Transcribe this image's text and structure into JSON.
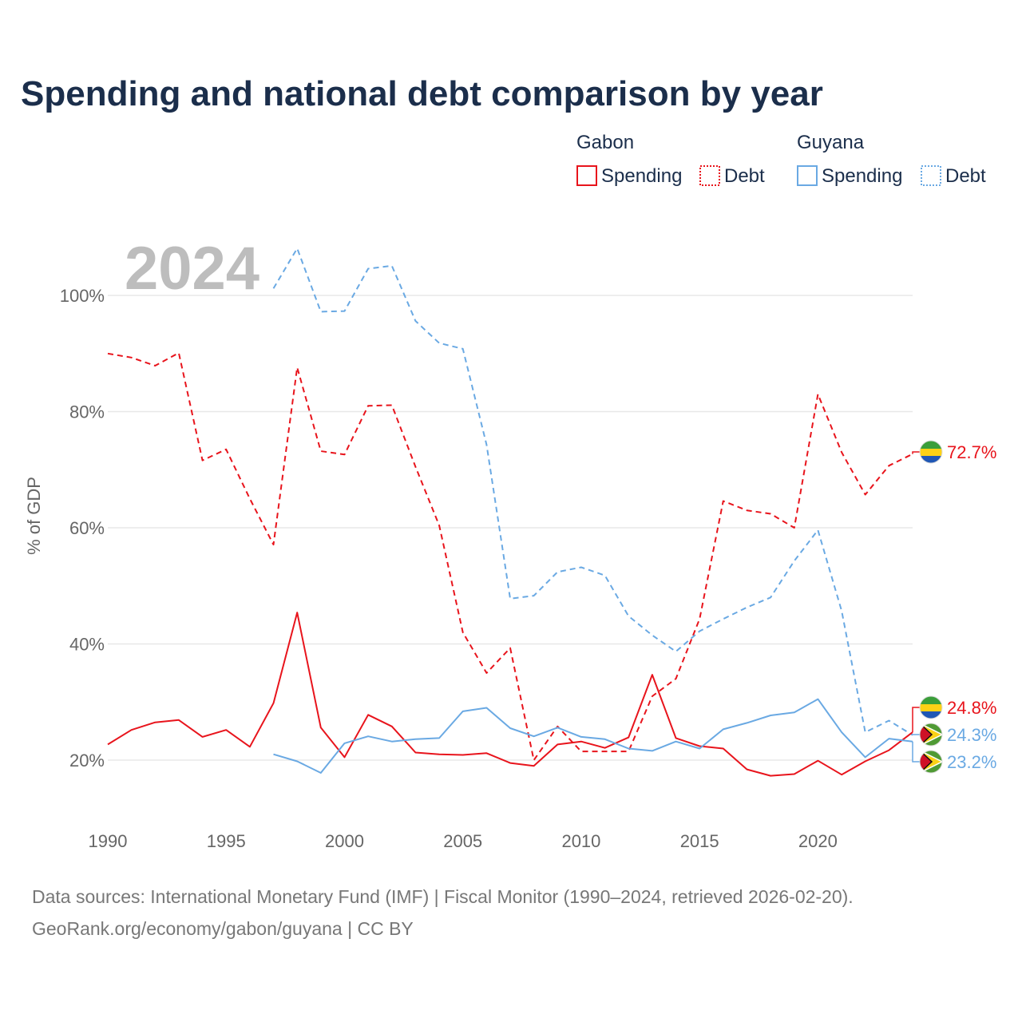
{
  "chart_data": {
    "type": "line",
    "title": "Spending and national debt comparison by year",
    "year_label": "2024",
    "ylabel": "% of GDP",
    "xlabel": "",
    "xlim": [
      1990,
      2024
    ],
    "ylim": [
      10,
      110
    ],
    "y_ticks": [
      20,
      40,
      60,
      80,
      100
    ],
    "y_tick_labels": [
      "20%",
      "40%",
      "60%",
      "80%",
      "100%"
    ],
    "x_ticks": [
      1990,
      1995,
      2000,
      2005,
      2010,
      2015,
      2020
    ],
    "x_tick_labels": [
      "1990",
      "1995",
      "2000",
      "2005",
      "2010",
      "2015",
      "2020"
    ],
    "grid": true,
    "legend": {
      "placement": "top-right",
      "groups": [
        {
          "name": "Gabon",
          "color": "#e8141c",
          "items": [
            "Spending",
            "Debt"
          ]
        },
        {
          "name": "Guyana",
          "color": "#6aa9e3",
          "items": [
            "Spending",
            "Debt"
          ]
        }
      ]
    },
    "series": [
      {
        "name": "Gabon Debt",
        "country": "Gabon",
        "metric": "Debt",
        "color": "#e8141c",
        "style": "dashed",
        "x": [
          1990,
          1991,
          1992,
          1993,
          1994,
          1995,
          1996,
          1997,
          1998,
          1999,
          2000,
          2001,
          2002,
          2003,
          2004,
          2005,
          2006,
          2007,
          2008,
          2009,
          2010,
          2011,
          2012,
          2013,
          2014,
          2015,
          2016,
          2017,
          2018,
          2019,
          2020,
          2021,
          2022,
          2023,
          2024
        ],
        "values": [
          90.0,
          89.3,
          87.9,
          90.1,
          71.6,
          73.5,
          65.0,
          57.1,
          87.6,
          73.2,
          72.6,
          81.0,
          81.1,
          70.5,
          60.4,
          42.0,
          35.0,
          39.3,
          20.0,
          25.8,
          21.5,
          21.5,
          21.5,
          31.0,
          34.0,
          44.3,
          64.6,
          63.0,
          62.4,
          60.0,
          83.0,
          73.0,
          65.7,
          70.7,
          72.7
        ],
        "end_label": "72.7%"
      },
      {
        "name": "Guyana Debt",
        "country": "Guyana",
        "metric": "Debt",
        "color": "#6aa9e3",
        "style": "dashed",
        "x": [
          1997,
          1998,
          1999,
          2000,
          2001,
          2002,
          2003,
          2004,
          2005,
          2006,
          2007,
          2008,
          2009,
          2010,
          2011,
          2012,
          2013,
          2014,
          2015,
          2016,
          2017,
          2018,
          2019,
          2020,
          2021,
          2022,
          2023,
          2024
        ],
        "values": [
          101.2,
          108.1,
          97.2,
          97.3,
          104.6,
          105.1,
          95.6,
          91.8,
          90.8,
          74.3,
          47.8,
          48.3,
          52.4,
          53.2,
          51.8,
          44.8,
          41.5,
          38.7,
          42.2,
          44.3,
          46.3,
          48.0,
          54.3,
          59.6,
          45.7,
          24.8,
          26.8,
          24.3
        ],
        "end_label": "24.3%"
      },
      {
        "name": "Gabon Spending",
        "country": "Gabon",
        "metric": "Spending",
        "color": "#e8141c",
        "style": "solid",
        "x": [
          1990,
          1991,
          1992,
          1993,
          1994,
          1995,
          1996,
          1997,
          1998,
          1999,
          2000,
          2001,
          2002,
          2003,
          2004,
          2005,
          2006,
          2007,
          2008,
          2009,
          2010,
          2011,
          2012,
          2013,
          2014,
          2015,
          2016,
          2017,
          2018,
          2019,
          2020,
          2021,
          2022,
          2023,
          2024
        ],
        "values": [
          22.7,
          25.2,
          26.5,
          26.9,
          24.0,
          25.2,
          22.3,
          29.8,
          45.4,
          25.6,
          20.5,
          27.8,
          25.8,
          21.3,
          21.0,
          20.9,
          21.2,
          19.5,
          19.0,
          22.7,
          23.2,
          22.1,
          23.9,
          34.7,
          23.8,
          22.4,
          22.0,
          18.4,
          17.3,
          17.6,
          19.9,
          17.5,
          19.8,
          21.7,
          24.8
        ],
        "end_label": "24.8%"
      },
      {
        "name": "Guyana Spending",
        "country": "Guyana",
        "metric": "Spending",
        "color": "#6aa9e3",
        "style": "solid",
        "x": [
          1997,
          1998,
          1999,
          2000,
          2001,
          2002,
          2003,
          2004,
          2005,
          2006,
          2007,
          2008,
          2009,
          2010,
          2011,
          2012,
          2013,
          2014,
          2015,
          2016,
          2017,
          2018,
          2019,
          2020,
          2021,
          2022,
          2023,
          2024
        ],
        "values": [
          21.0,
          19.8,
          17.8,
          22.9,
          24.1,
          23.2,
          23.6,
          23.8,
          28.4,
          29.0,
          25.5,
          24.1,
          25.6,
          24.0,
          23.6,
          22.0,
          21.6,
          23.2,
          22.0,
          25.3,
          26.4,
          27.7,
          28.2,
          30.5,
          24.8,
          20.5,
          23.7,
          23.2
        ],
        "end_label": "23.2%"
      }
    ]
  },
  "source": {
    "line1": "Data sources: International Monetary Fund (IMF) | Fiscal Monitor (1990–2024, retrieved 2026-02-20).",
    "line2": "GeoRank.org/economy/gabon/guyana | CC BY"
  },
  "flags": {
    "gabon": [
      "#3a9e3a",
      "#fcd116",
      "#1f57b5"
    ],
    "guyana": [
      "#4f9a34",
      "#fcd116",
      "#111111",
      "#ce1126"
    ]
  }
}
